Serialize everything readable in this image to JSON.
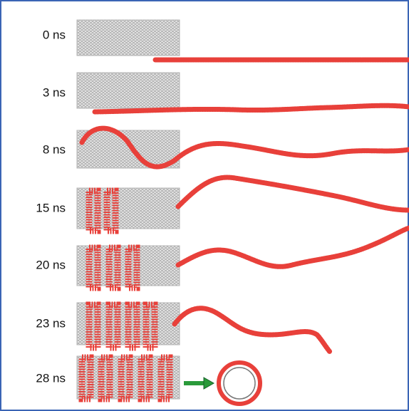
{
  "frames": [
    {
      "label": "0 ns"
    },
    {
      "label": "3 ns"
    },
    {
      "label": "8 ns"
    },
    {
      "label": "15 ns"
    },
    {
      "label": "20 ns"
    },
    {
      "label": "23 ns"
    },
    {
      "label": "28 ns"
    }
  ]
}
